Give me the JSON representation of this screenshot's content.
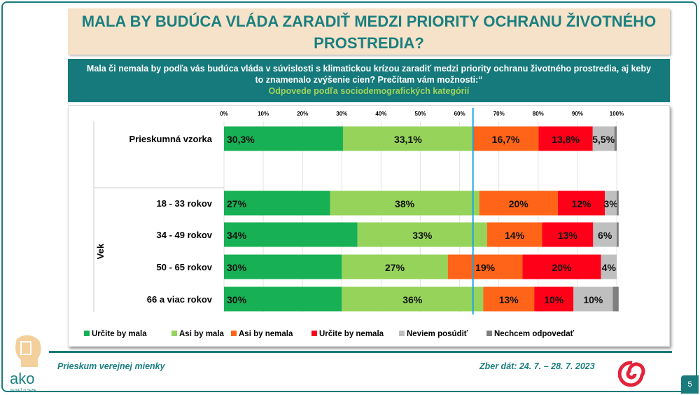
{
  "title": "MALA BY BUDÚCA VLÁDA ZARADIŤ MEDZI PRIORITY OCHRANU ŽIVOTNÉHO PROSTREDIA?",
  "question": "Mala či nemala by podľa vás budúca vláda v súvislosti s klimatickou krízou zaradiť medzi priority ochranu životného prostredia, aj keby to znamenalo zvýšenie cien? Prečítam vám možnosti:“",
  "subtitle": "Odpovede podľa sociodemografických kategórií",
  "chart_data": {
    "type": "bar",
    "orientation": "horizontal-stacked-100",
    "group_label": "Vek",
    "categories": [
      "Prieskumná vzorka",
      "18 - 33 rokov",
      "34 - 49 rokov",
      "50 - 65 rokov",
      "66 a viac rokov"
    ],
    "x_ticks": [
      "0%",
      "10%",
      "20%",
      "30%",
      "40%",
      "50%",
      "60%",
      "70%",
      "80%",
      "90%",
      "100%"
    ],
    "xlim": [
      0,
      100
    ],
    "grid": true,
    "legend_position": "bottom",
    "reference_line": 63.4,
    "series": [
      {
        "name": "Určite by mala",
        "color": "#18b054",
        "values": [
          30.3,
          27,
          34,
          30,
          30
        ],
        "labels": [
          "30,3%",
          "27%",
          "34%",
          "30%",
          "30%"
        ]
      },
      {
        "name": "Asi by mala",
        "color": "#95d35a",
        "values": [
          33.1,
          38,
          33,
          27,
          36
        ],
        "labels": [
          "33,1%",
          "38%",
          "33%",
          "27%",
          "36%"
        ]
      },
      {
        "name": "Asi by nemala",
        "color": "#ff6418",
        "values": [
          16.7,
          20,
          14,
          19,
          13
        ],
        "labels": [
          "16,7%",
          "20%",
          "14%",
          "19%",
          "13%"
        ]
      },
      {
        "name": "Určite by nemala",
        "color": "#ff0019",
        "values": [
          13.8,
          12,
          13,
          20,
          10
        ],
        "labels": [
          "13,8%",
          "12%",
          "13%",
          "20%",
          "10%"
        ]
      },
      {
        "name": "Neviem posúdiť",
        "color": "#bfbfbf",
        "values": [
          5.5,
          3,
          6,
          4,
          10
        ],
        "labels": [
          "5,5%",
          "3%",
          "6%",
          "4%",
          "10%"
        ]
      },
      {
        "name": "Nechcem odpovedať",
        "color": "#7f7f7f",
        "values": [
          0.6,
          0.5,
          0.5,
          0,
          1.5
        ],
        "labels": [
          "",
          "",
          "",
          "",
          ""
        ]
      }
    ]
  },
  "footer": {
    "left": "Prieskum verejnej mienky",
    "right": "Zber dát: 24. 7. – 28. 7. 2023",
    "page": "5",
    "logo": "ako",
    "logo_tagline": "VEDIEŤ O SEBE"
  }
}
